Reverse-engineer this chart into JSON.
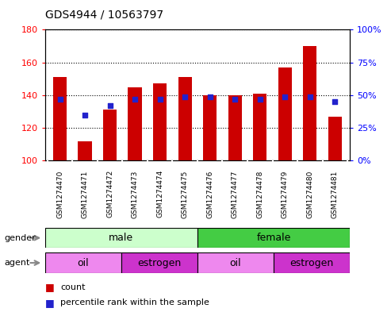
{
  "title": "GDS4944 / 10563797",
  "samples": [
    "GSM1274470",
    "GSM1274471",
    "GSM1274472",
    "GSM1274473",
    "GSM1274474",
    "GSM1274475",
    "GSM1274476",
    "GSM1274477",
    "GSM1274478",
    "GSM1274479",
    "GSM1274480",
    "GSM1274481"
  ],
  "counts": [
    151,
    112,
    131,
    145,
    147,
    151,
    140,
    140,
    141,
    157,
    170,
    127
  ],
  "percentiles": [
    47,
    35,
    42,
    47,
    47,
    49,
    49,
    47,
    47,
    49,
    49,
    45
  ],
  "ylim_left": [
    100,
    180
  ],
  "ylim_right": [
    0,
    100
  ],
  "yticks_left": [
    100,
    120,
    140,
    160,
    180
  ],
  "yticks_right": [
    0,
    25,
    50,
    75,
    100
  ],
  "ytick_labels_right": [
    "0%",
    "25%",
    "50%",
    "75%",
    "100%"
  ],
  "bar_color": "#cc0000",
  "dot_color": "#2222cc",
  "plot_bg_color": "#ffffff",
  "tick_area_bg_color": "#cccccc",
  "gender_male_light": "#ccffcc",
  "gender_female_green": "#44cc44",
  "agent_oil_color": "#ee88ee",
  "agent_estrogen_color": "#cc33cc",
  "border_color": "#000000",
  "agent_groups": [
    {
      "label": "oil",
      "start": 0,
      "end": 2,
      "color": "#ee88ee"
    },
    {
      "label": "estrogen",
      "start": 3,
      "end": 5,
      "color": "#cc33cc"
    },
    {
      "label": "oil",
      "start": 6,
      "end": 8,
      "color": "#ee88ee"
    },
    {
      "label": "estrogen",
      "start": 9,
      "end": 11,
      "color": "#cc33cc"
    }
  ]
}
